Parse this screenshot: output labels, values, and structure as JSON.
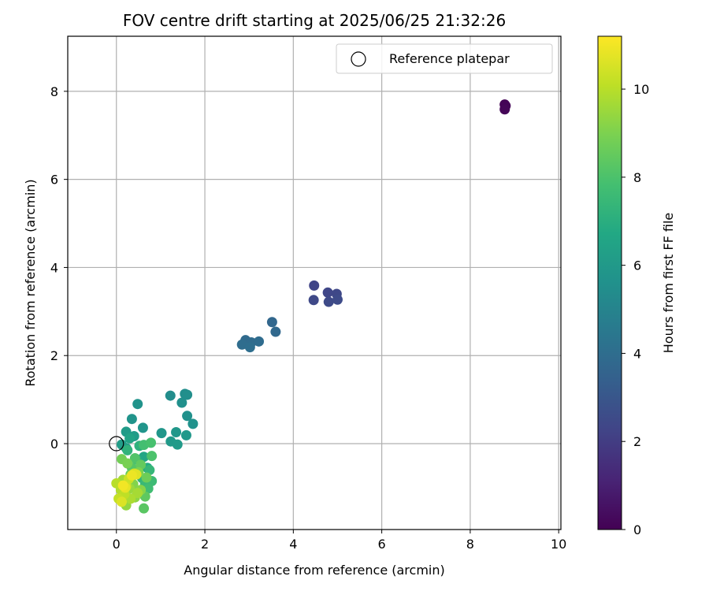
{
  "chart_data": {
    "type": "scatter",
    "title": "FOV centre drift starting at 2025/06/25 21:32:26",
    "xlabel": "Angular distance from reference (arcmin)",
    "ylabel": "Rotation from reference (arcmin)",
    "xlim": [
      -1.1,
      10.05
    ],
    "ylim": [
      -1.95,
      9.25
    ],
    "xticks": [
      0,
      2,
      4,
      6,
      8,
      10
    ],
    "yticks": [
      0,
      2,
      4,
      6,
      8
    ],
    "grid": true,
    "legend": {
      "placement": "top-right",
      "entries": [
        "Reference platepar"
      ]
    },
    "colorbar": {
      "label": "Hours from first FF file",
      "min": 0,
      "max": 11.2,
      "ticks": [
        0,
        2,
        4,
        6,
        8,
        10
      ],
      "colormap": "viridis"
    },
    "reference_point": {
      "x": 0,
      "y": 0
    },
    "points": [
      {
        "x": 8.78,
        "y": 7.7,
        "c": 0.05
      },
      {
        "x": 8.8,
        "y": 7.67,
        "c": 0.1
      },
      {
        "x": 8.78,
        "y": 7.59,
        "c": 0.15
      },
      {
        "x": 4.47,
        "y": 3.59,
        "c": 2.3
      },
      {
        "x": 4.78,
        "y": 3.43,
        "c": 2.35
      },
      {
        "x": 4.98,
        "y": 3.4,
        "c": 2.4
      },
      {
        "x": 4.46,
        "y": 3.26,
        "c": 2.45
      },
      {
        "x": 4.8,
        "y": 3.22,
        "c": 2.5
      },
      {
        "x": 5.0,
        "y": 3.27,
        "c": 2.55
      },
      {
        "x": 3.52,
        "y": 2.76,
        "c": 3.7
      },
      {
        "x": 3.6,
        "y": 2.54,
        "c": 3.75
      },
      {
        "x": 2.92,
        "y": 2.35,
        "c": 3.85
      },
      {
        "x": 3.05,
        "y": 2.3,
        "c": 3.9
      },
      {
        "x": 3.22,
        "y": 2.32,
        "c": 3.95
      },
      {
        "x": 2.84,
        "y": 2.25,
        "c": 4.0
      },
      {
        "x": 3.02,
        "y": 2.19,
        "c": 4.05
      },
      {
        "x": 1.22,
        "y": 1.09,
        "c": 5.4
      },
      {
        "x": 1.55,
        "y": 1.13,
        "c": 5.45
      },
      {
        "x": 1.6,
        "y": 1.11,
        "c": 5.5
      },
      {
        "x": 1.48,
        "y": 0.93,
        "c": 5.55
      },
      {
        "x": 1.6,
        "y": 0.63,
        "c": 5.6
      },
      {
        "x": 1.73,
        "y": 0.45,
        "c": 5.65
      },
      {
        "x": 0.48,
        "y": 0.9,
        "c": 5.7
      },
      {
        "x": 0.35,
        "y": 0.56,
        "c": 5.75
      },
      {
        "x": 0.6,
        "y": 0.36,
        "c": 5.8
      },
      {
        "x": 1.02,
        "y": 0.24,
        "c": 5.85
      },
      {
        "x": 1.35,
        "y": 0.26,
        "c": 5.9
      },
      {
        "x": 1.58,
        "y": 0.19,
        "c": 5.95
      },
      {
        "x": 1.23,
        "y": 0.05,
        "c": 6.0
      },
      {
        "x": 1.38,
        "y": -0.02,
        "c": 6.05
      },
      {
        "x": 0.22,
        "y": 0.27,
        "c": 6.1
      },
      {
        "x": 0.4,
        "y": 0.17,
        "c": 6.15
      },
      {
        "x": 0.12,
        "y": -0.02,
        "c": 6.2
      },
      {
        "x": 0.22,
        "y": -0.1,
        "c": 6.3
      },
      {
        "x": 0.3,
        "y": 0.12,
        "c": 6.5
      },
      {
        "x": 0.62,
        "y": -0.3,
        "c": 6.6
      },
      {
        "x": 0.7,
        "y": -0.55,
        "c": 6.8
      },
      {
        "x": 0.45,
        "y": -0.35,
        "c": 6.9
      },
      {
        "x": 0.52,
        "y": -0.05,
        "c": 7.1
      },
      {
        "x": 0.25,
        "y": -0.15,
        "c": 7.2
      },
      {
        "x": 0.58,
        "y": -0.78,
        "c": 7.3
      },
      {
        "x": 0.75,
        "y": -0.6,
        "c": 7.4
      },
      {
        "x": 0.65,
        "y": -0.92,
        "c": 7.5
      },
      {
        "x": 0.8,
        "y": -0.85,
        "c": 7.6
      },
      {
        "x": 0.72,
        "y": -1.02,
        "c": 7.7
      },
      {
        "x": 0.62,
        "y": -0.03,
        "c": 7.8
      },
      {
        "x": 0.78,
        "y": 0.02,
        "c": 7.9
      },
      {
        "x": 0.8,
        "y": -0.28,
        "c": 8.0
      },
      {
        "x": 0.42,
        "y": -0.33,
        "c": 8.1
      },
      {
        "x": 0.35,
        "y": -0.55,
        "c": 8.2
      },
      {
        "x": 0.62,
        "y": -1.47,
        "c": 8.3
      },
      {
        "x": 0.65,
        "y": -1.2,
        "c": 8.4
      },
      {
        "x": 0.55,
        "y": -0.48,
        "c": 8.5
      },
      {
        "x": 0.32,
        "y": -0.7,
        "c": 8.6
      },
      {
        "x": 0.68,
        "y": -0.77,
        "c": 8.7
      },
      {
        "x": 0.12,
        "y": -0.35,
        "c": 8.8
      },
      {
        "x": 0.25,
        "y": -0.45,
        "c": 8.9
      },
      {
        "x": 0.5,
        "y": -0.65,
        "c": 9.0
      },
      {
        "x": 0.38,
        "y": -0.92,
        "c": 9.1
      },
      {
        "x": 0.55,
        "y": -1.05,
        "c": 9.2
      },
      {
        "x": 0.42,
        "y": -1.22,
        "c": 9.3
      },
      {
        "x": 0.22,
        "y": -1.4,
        "c": 9.4
      },
      {
        "x": 0.3,
        "y": -1.02,
        "c": 9.5
      },
      {
        "x": 0.15,
        "y": -0.82,
        "c": 9.6
      },
      {
        "x": 0.48,
        "y": -1.12,
        "c": 9.7
      },
      {
        "x": 0.32,
        "y": -1.25,
        "c": 9.8
      },
      {
        "x": 0.1,
        "y": -1.05,
        "c": 9.9
      },
      {
        "x": 0.0,
        "y": -0.9,
        "c": 10.0
      },
      {
        "x": 0.18,
        "y": -1.15,
        "c": 10.1
      },
      {
        "x": 0.05,
        "y": -1.25,
        "c": 10.2
      },
      {
        "x": 0.28,
        "y": -0.8,
        "c": 10.3
      },
      {
        "x": 0.22,
        "y": -0.97,
        "c": 10.4
      },
      {
        "x": 0.4,
        "y": -0.68,
        "c": 10.5
      },
      {
        "x": 0.12,
        "y": -1.32,
        "c": 10.6
      },
      {
        "x": 0.45,
        "y": -0.7,
        "c": 10.7
      },
      {
        "x": 0.2,
        "y": -1.0,
        "c": 10.8
      },
      {
        "x": 0.35,
        "y": -0.72,
        "c": 10.9
      },
      {
        "x": 0.15,
        "y": -0.95,
        "c": 11.0
      }
    ]
  }
}
